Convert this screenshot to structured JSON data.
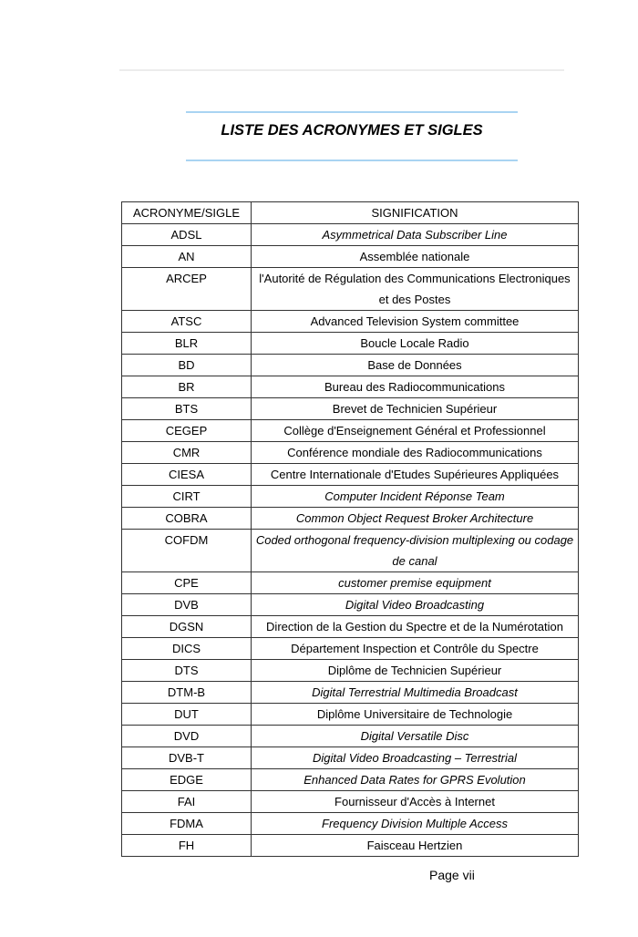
{
  "title": "LISTE DES ACRONYMES ET SIGLES",
  "table": {
    "headers": [
      "ACRONYME/SIGLE",
      "SIGNIFICATION"
    ],
    "rows": [
      {
        "acronym": "ADSL",
        "meaning": "Asymmetrical Data Subscriber Line",
        "italic": true
      },
      {
        "acronym": "AN",
        "meaning": "Assemblée nationale",
        "italic": false
      },
      {
        "acronym": "ARCEP",
        "meaning": "l'Autorité de Régulation des Communications Electroniques et des Postes",
        "italic": false
      },
      {
        "acronym": "ATSC",
        "meaning": "Advanced Television System committee",
        "italic": false
      },
      {
        "acronym": "BLR",
        "meaning": "Boucle Locale Radio",
        "italic": false
      },
      {
        "acronym": "BD",
        "meaning": "Base de Données",
        "italic": false
      },
      {
        "acronym": "BR",
        "meaning": "Bureau des Radiocommunications",
        "italic": false
      },
      {
        "acronym": "BTS",
        "meaning": "Brevet de Technicien Supérieur",
        "italic": false
      },
      {
        "acronym": "CEGEP",
        "meaning": "Collège d'Enseignement Général et Professionnel",
        "italic": false
      },
      {
        "acronym": "CMR",
        "meaning": "Conférence mondiale des Radiocommunications",
        "italic": false
      },
      {
        "acronym": "CIESA",
        "meaning": "Centre Internationale d'Etudes Supérieures Appliquées",
        "italic": false
      },
      {
        "acronym": "CIRT",
        "meaning": "Computer Incident Réponse Team",
        "italic": true
      },
      {
        "acronym": "COBRA",
        "meaning": "Common Object Request Broker Architecture",
        "italic": true
      },
      {
        "acronym": "COFDM",
        "meaning": "Coded orthogonal frequency-division multiplexing ou codage de canal",
        "italic": true
      },
      {
        "acronym": "CPE",
        "meaning": "customer premise equipment",
        "italic": true
      },
      {
        "acronym": "DVB",
        "meaning": "Digital Video Broadcasting",
        "italic": true
      },
      {
        "acronym": "DGSN",
        "meaning": "Direction de la Gestion du Spectre et de la Numérotation",
        "italic": false
      },
      {
        "acronym": "DICS",
        "meaning": "Département Inspection et Contrôle du Spectre",
        "italic": false
      },
      {
        "acronym": "DTS",
        "meaning": "Diplôme de Technicien Supérieur",
        "italic": false
      },
      {
        "acronym": "DTM-B",
        "meaning": "Digital Terrestrial Multimedia Broadcast",
        "italic": true
      },
      {
        "acronym": "DUT",
        "meaning": "Diplôme Universitaire de Technologie",
        "italic": false
      },
      {
        "acronym": "DVD",
        "meaning": "Digital Versatile Disc",
        "italic": true
      },
      {
        "acronym": "DVB-T",
        "meaning": "Digital Video Broadcasting – Terrestrial",
        "italic": true
      },
      {
        "acronym": "EDGE",
        "meaning": "Enhanced Data Rates for GPRS Evolution",
        "italic": true
      },
      {
        "acronym": "FAI",
        "meaning": "Fournisseur d'Accès à Internet",
        "italic": false
      },
      {
        "acronym": "FDMA",
        "meaning": "Frequency Division Multiple Access",
        "italic": true
      },
      {
        "acronym": "FH",
        "meaning": "Faisceau Hertzien",
        "italic": false
      }
    ]
  },
  "footer": {
    "page": "Page vii"
  },
  "colors": {
    "rule": "#a9d4f2",
    "border": "#333333"
  }
}
